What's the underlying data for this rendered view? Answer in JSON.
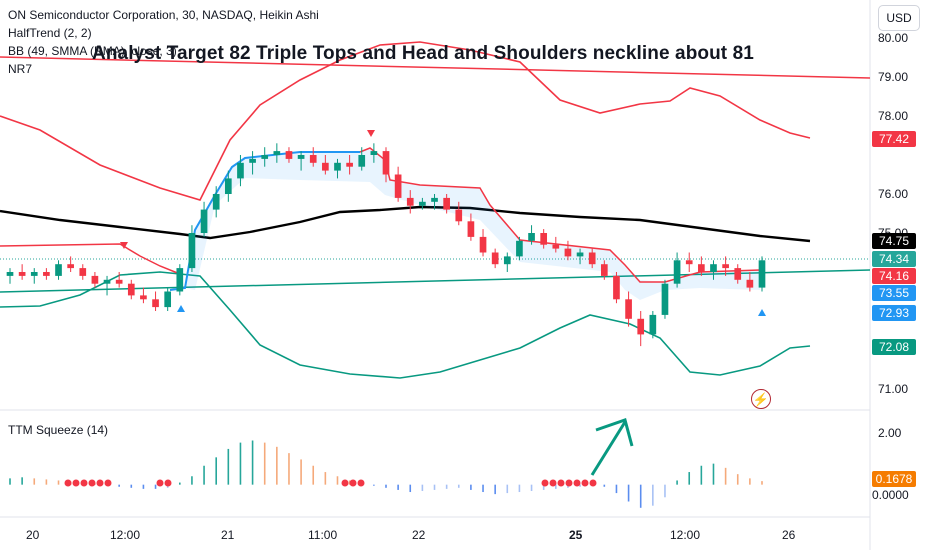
{
  "header": {
    "title": "ON Semiconductor Corporation, 30, NASDAQ, Heikin Ashi",
    "halftrend": "HalfTrend (2, 2)",
    "bb": "BB (49, SMMA (RMA), close, 3)",
    "nr7": "NR7",
    "headline": "Analyst Target 82  Triple Tops and  Head and Shoulders neckline about 81",
    "currency_button": "USD"
  },
  "subpane": {
    "legend": "TTM Squeeze (14)"
  },
  "price_axis": {
    "labels": [
      "80.00",
      "79.00",
      "78.00",
      "76.00",
      "75.00",
      "71.00"
    ],
    "tags": [
      {
        "text": "77.42",
        "color": "#f23645"
      },
      {
        "text": "74.75",
        "color": "#000000"
      },
      {
        "text": "74.34",
        "color": "#26a69a"
      },
      {
        "text": "74.16",
        "color": "#f23645"
      },
      {
        "text": "73.55",
        "color": "#2196f3"
      },
      {
        "text": "72.93",
        "color": "#2196f3"
      },
      {
        "text": "72.08",
        "color": "#089981"
      }
    ]
  },
  "squeeze_axis": {
    "labels": [
      "2.00",
      "0.0000"
    ],
    "tag": {
      "text": "0.1678",
      "color": "#f57c00"
    }
  },
  "time_axis": {
    "labels": [
      "20",
      "12:00",
      "21",
      "11:00",
      "22",
      "25",
      "12:00",
      "26"
    ]
  },
  "colors": {
    "up": "#089981",
    "down": "#f23645",
    "bb_upper": "#f23645",
    "bb_lower": "#089981",
    "bb_basis": "#000000",
    "halftrend_up": "#2196f3",
    "halftrend_down": "#f23645",
    "neckline": "#f23645",
    "trend": "#089981"
  },
  "chart_data": {
    "type": "candlestick",
    "price_range": [
      70.5,
      80.5
    ],
    "candles": [
      [
        73.9,
        74.1,
        73.7,
        74.0
      ],
      [
        74.0,
        74.2,
        73.8,
        73.9
      ],
      [
        73.9,
        74.1,
        73.7,
        74.0
      ],
      [
        74.0,
        74.1,
        73.8,
        73.9
      ],
      [
        73.9,
        74.3,
        73.8,
        74.2
      ],
      [
        74.2,
        74.4,
        74.0,
        74.1
      ],
      [
        74.1,
        74.2,
        73.8,
        73.9
      ],
      [
        73.9,
        74.0,
        73.6,
        73.7
      ],
      [
        73.7,
        73.9,
        73.4,
        73.8
      ],
      [
        73.8,
        74.0,
        73.6,
        73.7
      ],
      [
        73.7,
        73.8,
        73.3,
        73.4
      ],
      [
        73.4,
        73.6,
        73.2,
        73.3
      ],
      [
        73.3,
        73.5,
        73.0,
        73.1
      ],
      [
        73.1,
        73.6,
        73.0,
        73.5
      ],
      [
        73.5,
        74.2,
        73.4,
        74.1
      ],
      [
        74.1,
        75.2,
        74.0,
        75.0
      ],
      [
        75.0,
        75.8,
        74.9,
        75.6
      ],
      [
        75.6,
        76.2,
        75.4,
        76.0
      ],
      [
        76.0,
        76.6,
        75.8,
        76.4
      ],
      [
        76.4,
        77.0,
        76.2,
        76.8
      ],
      [
        76.8,
        77.1,
        76.5,
        76.9
      ],
      [
        76.9,
        77.2,
        76.7,
        77.0
      ],
      [
        77.0,
        77.3,
        76.8,
        77.1
      ],
      [
        77.1,
        77.2,
        76.8,
        76.9
      ],
      [
        76.9,
        77.1,
        76.6,
        77.0
      ],
      [
        77.0,
        77.2,
        76.7,
        76.8
      ],
      [
        76.8,
        77.0,
        76.5,
        76.6
      ],
      [
        76.6,
        76.9,
        76.4,
        76.8
      ],
      [
        76.8,
        77.0,
        76.5,
        76.7
      ],
      [
        76.7,
        77.2,
        76.6,
        77.0
      ],
      [
        77.0,
        77.3,
        76.8,
        77.1
      ],
      [
        77.1,
        77.2,
        76.3,
        76.5
      ],
      [
        76.5,
        76.7,
        75.8,
        75.9
      ],
      [
        75.9,
        76.1,
        75.5,
        75.7
      ],
      [
        75.7,
        75.9,
        75.6,
        75.8
      ],
      [
        75.8,
        76.0,
        75.6,
        75.9
      ],
      [
        75.9,
        76.0,
        75.5,
        75.6
      ],
      [
        75.6,
        75.8,
        75.2,
        75.3
      ],
      [
        75.3,
        75.5,
        74.8,
        74.9
      ],
      [
        74.9,
        75.1,
        74.4,
        74.5
      ],
      [
        74.5,
        74.6,
        74.1,
        74.2
      ],
      [
        74.2,
        74.5,
        74.0,
        74.4
      ],
      [
        74.4,
        74.9,
        74.3,
        74.8
      ],
      [
        74.8,
        75.2,
        74.7,
        75.0
      ],
      [
        75.0,
        75.1,
        74.6,
        74.7
      ],
      [
        74.7,
        74.9,
        74.5,
        74.6
      ],
      [
        74.6,
        74.8,
        74.3,
        74.4
      ],
      [
        74.4,
        74.6,
        74.2,
        74.5
      ],
      [
        74.5,
        74.6,
        74.1,
        74.2
      ],
      [
        74.2,
        74.3,
        73.8,
        73.9
      ],
      [
        73.9,
        74.0,
        73.2,
        73.3
      ],
      [
        73.3,
        73.5,
        72.6,
        72.8
      ],
      [
        72.8,
        73.0,
        72.1,
        72.4
      ],
      [
        72.4,
        73.0,
        72.3,
        72.9
      ],
      [
        72.9,
        73.8,
        72.8,
        73.7
      ],
      [
        73.7,
        74.5,
        73.6,
        74.3
      ],
      [
        74.3,
        74.5,
        74.0,
        74.2
      ],
      [
        74.2,
        74.4,
        73.9,
        74.0
      ],
      [
        74.0,
        74.3,
        73.8,
        74.2
      ],
      [
        74.2,
        74.4,
        73.9,
        74.1
      ],
      [
        74.1,
        74.2,
        73.7,
        73.8
      ],
      [
        73.8,
        74.0,
        73.5,
        73.6
      ],
      [
        73.6,
        74.4,
        73.5,
        74.3
      ]
    ],
    "squeeze_histogram": [
      0.3,
      0.35,
      0.3,
      0.25,
      0.2,
      0.15,
      0.1,
      0.05,
      -0.05,
      -0.1,
      -0.15,
      -0.2,
      -0.2,
      -0.15,
      0.1,
      0.4,
      0.9,
      1.3,
      1.7,
      2.0,
      2.1,
      2.0,
      1.8,
      1.5,
      1.2,
      0.9,
      0.6,
      0.4,
      0.2,
      0.1,
      -0.05,
      -0.15,
      -0.25,
      -0.35,
      -0.3,
      -0.25,
      -0.2,
      -0.15,
      -0.25,
      -0.35,
      -0.45,
      -0.4,
      -0.35,
      -0.3,
      -0.25,
      -0.2,
      -0.15,
      -0.1,
      -0.05,
      -0.1,
      -0.4,
      -0.8,
      -1.1,
      -1.0,
      -0.6,
      0.2,
      0.6,
      0.9,
      1.0,
      0.8,
      0.5,
      0.3,
      0.17
    ],
    "squeeze_range": [
      -1.3,
      2.6
    ]
  }
}
